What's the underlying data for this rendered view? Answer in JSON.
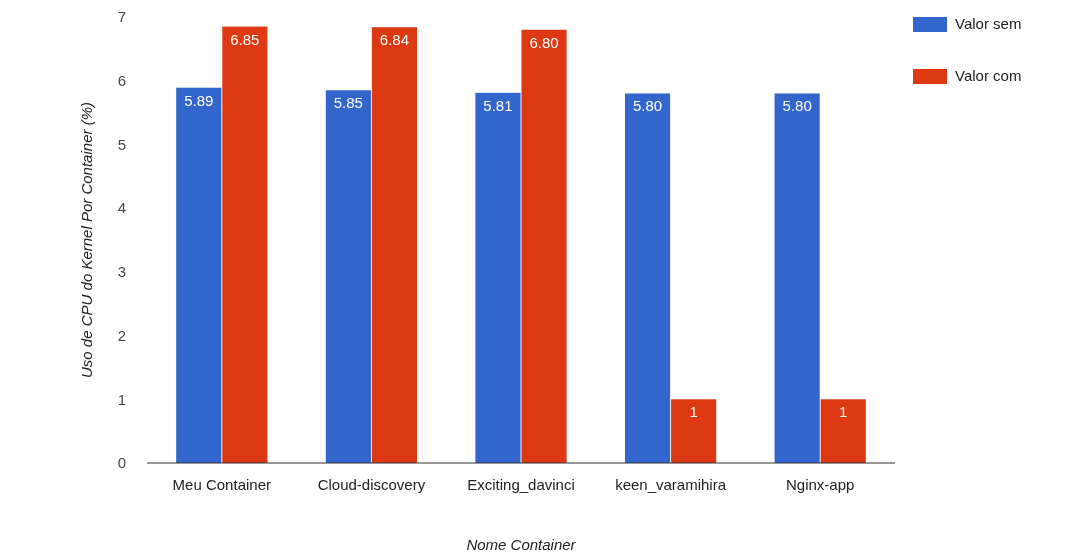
{
  "chart_data": {
    "type": "bar",
    "xlabel": "Nome Container",
    "ylabel": "Uso de CPU do Kernel Por Container (%)",
    "categories": [
      "Meu Container",
      "Cloud-discovery",
      "Exciting_davinci",
      "keen_varamihira",
      "Nginx-app"
    ],
    "series": [
      {
        "name": "Valor sem",
        "color": "#3366cc",
        "values": [
          5.89,
          5.85,
          5.81,
          5.8,
          5.8
        ],
        "value_labels": [
          "5.89",
          "5.85",
          "5.81",
          "5.80",
          "5.80"
        ]
      },
      {
        "name": "Valor com",
        "color": "#dc3912",
        "values": [
          6.85,
          6.84,
          6.8,
          1,
          1
        ],
        "value_labels": [
          "6.85",
          "6.84",
          "6.80",
          "1",
          "1"
        ]
      }
    ],
    "ylim": [
      0,
      7
    ],
    "yticks": [
      0,
      1,
      2,
      3,
      4,
      5,
      6,
      7
    ],
    "legend": "right",
    "grid": false
  }
}
